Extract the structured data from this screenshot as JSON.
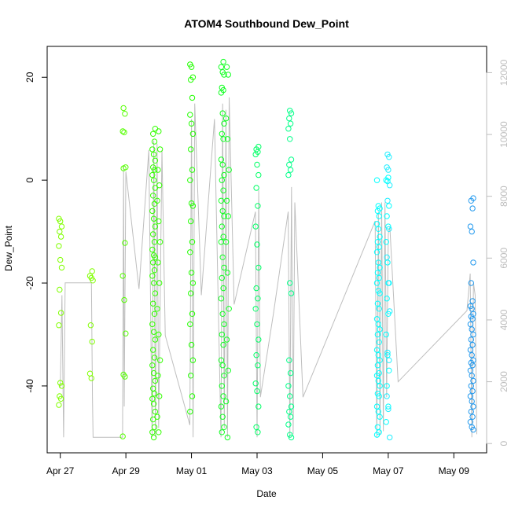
{
  "chart_data": {
    "type": "scatter",
    "title": "ATOM4 Southbound Dew_Point",
    "xlabel": "Date",
    "ylabel": "Dew_Point",
    "x_ticks": [
      "Apr 27",
      "Apr 29",
      "May 01",
      "May 03",
      "May 05",
      "May 07",
      "May 09"
    ],
    "x_tick_days": [
      0,
      2,
      4,
      6,
      8,
      10,
      12
    ],
    "x_range_days": [
      -0.4,
      13.0
    ],
    "ylim": [
      -53,
      26
    ],
    "y_ticks": [
      -40,
      -20,
      0,
      20
    ],
    "y2lim": [
      -300,
      12850
    ],
    "y2_ticks": [
      0,
      2000,
      4000,
      6000,
      8000,
      10000,
      12000
    ],
    "y2_tick_labels": [
      "0",
      "2000",
      "4000",
      "6000",
      "8000",
      "10000",
      "12000"
    ],
    "colors": {
      "line": "#bebebe",
      "axis": "#000000",
      "right_axis": "#bdbdbd"
    },
    "point_groups": [
      {
        "day": 0.0,
        "color": "#80ff00",
        "values": [
          -7.5,
          -8,
          -9,
          -10,
          -11,
          -12.8,
          -15.5,
          -17,
          -21.3,
          -25.8,
          -28.2,
          -39.4,
          -40,
          -42,
          -42.5,
          -43.7
        ]
      },
      {
        "day": 0.95,
        "color": "#80ff00",
        "values": [
          -17.7,
          -18.6,
          -19,
          -19.5,
          -28.2,
          -31.4,
          -37.6,
          -38.5
        ]
      },
      {
        "day": 1.95,
        "color": "#55ff00",
        "values": [
          14,
          12.9,
          9.5,
          9.3,
          2.5,
          2.3,
          -12.2,
          -18.6,
          -23.3,
          -29.8,
          -37.8,
          -38.2,
          -49.8
        ]
      },
      {
        "day": 2.85,
        "color": "#33ff00",
        "values": [
          10,
          9,
          7.5,
          6,
          5,
          3.8,
          2.5,
          2,
          1,
          0,
          -1.5,
          -3,
          -4.6,
          -6,
          -7.5,
          -9,
          -10.5,
          -12,
          -13.5,
          -14.6,
          -15,
          -16,
          -17.5,
          -18.6,
          -20,
          -22,
          -24,
          -26,
          -28,
          -29.5,
          -31,
          -33,
          -34.5,
          -36,
          -37.5,
          -39,
          -40.5,
          -41.5,
          -42.5,
          -43.5,
          -45,
          -46.5,
          -48,
          -49,
          -50
        ]
      },
      {
        "day": 3.0,
        "color": "#33ff00",
        "values": [
          9.5,
          6,
          2,
          -1,
          -4,
          -8,
          -12,
          -16,
          -20,
          -25,
          -30,
          -35,
          -38,
          -42,
          -46,
          -49
        ]
      },
      {
        "day": 4.0,
        "color": "#22ff00",
        "values": [
          22.5,
          22,
          20,
          19.5,
          16,
          12.7,
          11,
          9,
          6,
          2,
          0,
          -4.5,
          -5,
          -8,
          -12,
          -14,
          -18,
          -20,
          -22,
          -26,
          -28,
          -32,
          -35,
          -38,
          -42,
          -45
        ]
      },
      {
        "day": 4.95,
        "color": "#11ff22",
        "values": [
          23,
          22,
          21,
          20.5,
          18,
          17.5,
          17,
          13,
          11,
          9,
          8,
          4,
          3,
          1,
          0,
          -2,
          -4,
          -6,
          -7,
          -9,
          -11,
          -12,
          -15,
          -17,
          -19,
          -21,
          -23,
          -26,
          -28,
          -30,
          -32,
          -35,
          -36,
          -38,
          -40,
          -42,
          -44,
          -46,
          -48,
          -49
        ]
      },
      {
        "day": 5.1,
        "color": "#11ff22",
        "values": [
          22,
          20.5,
          12,
          8,
          2,
          -4,
          -7,
          -12,
          -18,
          -25,
          -31,
          -37,
          -43,
          -50
        ]
      },
      {
        "day": 6.0,
        "color": "#00ff66",
        "values": [
          6.5,
          6,
          5.5,
          5,
          3,
          1,
          -1.5,
          -5,
          -9,
          -12.5,
          -17,
          -21,
          -23,
          -25,
          -28,
          -31,
          -34,
          -36,
          -39.5,
          -41,
          -44,
          -48,
          -49
        ]
      },
      {
        "day": 7.0,
        "color": "#00ff88",
        "values": [
          13.5,
          13,
          12,
          11,
          10,
          8,
          4,
          3,
          2,
          1,
          -20,
          -22,
          -35,
          -37.5,
          -40,
          -42,
          -44,
          -45,
          -46,
          -47.5,
          -49.5,
          -50
        ]
      },
      {
        "day": 9.7,
        "color": "#00ffff",
        "values": [
          0,
          -5,
          -5.5,
          -6,
          -7,
          -8.5,
          -9.5,
          -11,
          -12,
          -13,
          -14,
          -16,
          -17,
          -18,
          -19,
          -20,
          -21.5,
          -22,
          -24,
          -25,
          -27,
          -28,
          -29,
          -30,
          -31.5,
          -33,
          -34,
          -35,
          -36,
          -37.5,
          -38,
          -39,
          -40,
          -41.5,
          -42,
          -44,
          -45,
          -46,
          -48,
          -49,
          -49.5
        ]
      },
      {
        "day": 9.98,
        "color": "#00ffff",
        "values": [
          0.5,
          0,
          -0.2,
          -5,
          -7,
          -9,
          -12,
          -16,
          -20,
          -23,
          -26,
          -30,
          -34,
          -37,
          -40,
          -44,
          -47
        ]
      },
      {
        "day": 10.0,
        "color": "#22eeff",
        "values": [
          5,
          4.5,
          2.5,
          2,
          -1,
          -4,
          -9.5,
          -15,
          -20,
          -25.5,
          -33.5,
          -35,
          -42,
          -44.5,
          -50
        ]
      },
      {
        "day": 12.55,
        "color": "#2299ee",
        "values": [
          -3.5,
          -4,
          -5.5,
          -9,
          -10,
          -16,
          -20,
          -23.5,
          -24.5,
          -25,
          -26,
          -26.5,
          -27,
          -28,
          -29,
          -30,
          -31,
          -32,
          -33,
          -34,
          -35,
          -35.5,
          -36,
          -37,
          -38,
          -39,
          -40,
          -41,
          -42,
          -43,
          -44,
          -45,
          -46,
          -47,
          -48,
          -48.5
        ]
      }
    ],
    "altitude_line": [
      [
        0.0,
        1800
      ],
      [
        0.05,
        4800
      ],
      [
        0.1,
        200
      ],
      [
        0.15,
        5200
      ],
      [
        0.5,
        5200
      ],
      [
        0.95,
        5200
      ],
      [
        0.98,
        1500
      ],
      [
        1.0,
        200
      ],
      [
        1.9,
        200
      ],
      [
        1.93,
        9000
      ],
      [
        1.95,
        1200
      ],
      [
        2.0,
        8800
      ],
      [
        2.4,
        5000
      ],
      [
        2.7,
        9500
      ],
      [
        2.8,
        200
      ],
      [
        2.85,
        9800
      ],
      [
        2.9,
        200
      ],
      [
        2.95,
        9700
      ],
      [
        3.0,
        500
      ],
      [
        3.1,
        9500
      ],
      [
        3.2,
        3500
      ],
      [
        3.95,
        600
      ],
      [
        4.0,
        10500
      ],
      [
        4.05,
        200
      ],
      [
        4.1,
        11000
      ],
      [
        4.3,
        4800
      ],
      [
        4.7,
        10500
      ],
      [
        4.9,
        200
      ],
      [
        4.95,
        11000
      ],
      [
        5.0,
        500
      ],
      [
        5.05,
        10800
      ],
      [
        5.1,
        200
      ],
      [
        5.15,
        11200
      ],
      [
        5.3,
        4500
      ],
      [
        5.95,
        7500
      ],
      [
        6.0,
        200
      ],
      [
        6.05,
        8200
      ],
      [
        6.1,
        1500
      ],
      [
        6.5,
        4200
      ],
      [
        6.95,
        7500
      ],
      [
        7.0,
        200
      ],
      [
        7.05,
        8300
      ],
      [
        7.1,
        300
      ],
      [
        7.15,
        7800
      ],
      [
        7.4,
        1500
      ],
      [
        9.6,
        7200
      ],
      [
        9.65,
        200
      ],
      [
        9.7,
        7500
      ],
      [
        9.75,
        300
      ],
      [
        9.8,
        7800
      ],
      [
        9.85,
        400
      ],
      [
        9.9,
        7800
      ],
      [
        9.95,
        1500
      ],
      [
        10.0,
        6800
      ],
      [
        10.05,
        7000
      ],
      [
        10.3,
        2000
      ],
      [
        12.4,
        4300
      ],
      [
        12.5,
        5500
      ],
      [
        12.55,
        200
      ],
      [
        12.6,
        5200
      ],
      [
        12.65,
        4800
      ],
      [
        12.7,
        300
      ]
    ]
  }
}
